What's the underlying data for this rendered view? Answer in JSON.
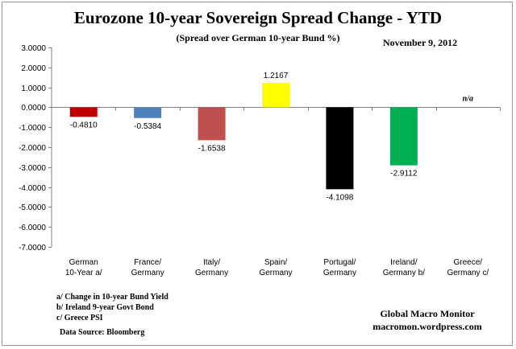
{
  "chart_data": {
    "type": "bar",
    "title": "Eurozone 10-year Sovereign Spread Change - YTD",
    "subtitle": "(Spread over German 10-year Bund %)",
    "date": "November 9,  2012",
    "categories": [
      [
        "German",
        "10-Year a/"
      ],
      [
        "France/",
        "Germany"
      ],
      [
        "Italy/",
        "Germany"
      ],
      [
        "Spain/",
        "Germany"
      ],
      [
        "Portugal/",
        "Germany"
      ],
      [
        "Ireland/",
        "Germany b/"
      ],
      [
        "Greece/",
        "Germany c/"
      ]
    ],
    "values": [
      -0.481,
      -0.5384,
      -1.6538,
      1.2167,
      -4.1098,
      -2.9112,
      null
    ],
    "value_labels": [
      "-0.4810",
      "-0.5384",
      "-1.6538",
      "1.2167",
      "-4.1098",
      "-2.9112",
      "n/a"
    ],
    "colors": [
      "#c00000",
      "#4f81bd",
      "#c0504d",
      "#ffff00",
      "#000000",
      "#00b050",
      "#ffffff"
    ],
    "ylim": [
      -7,
      3
    ],
    "yticks": [
      3,
      2,
      1,
      0,
      -1,
      -2,
      -3,
      -4,
      -5,
      -6,
      -7
    ],
    "ytick_labels": [
      "3.0000",
      "2.0000",
      "1.0000",
      "0.0000",
      "-1.0000",
      "-2.0000",
      "-3.0000",
      "-4.0000",
      "-5.0000",
      "-6.0000",
      "-7.0000"
    ],
    "xlabel": "",
    "ylabel": ""
  },
  "notes": [
    "a/  Change in 10-year Bund Yield",
    "b/  Ireland 9-year Govt Bond",
    "c/  Greece PSI"
  ],
  "source": "Data Source:  Bloomberg",
  "credit": [
    "Global Macro Monitor",
    "macromon.wordpress.com"
  ]
}
